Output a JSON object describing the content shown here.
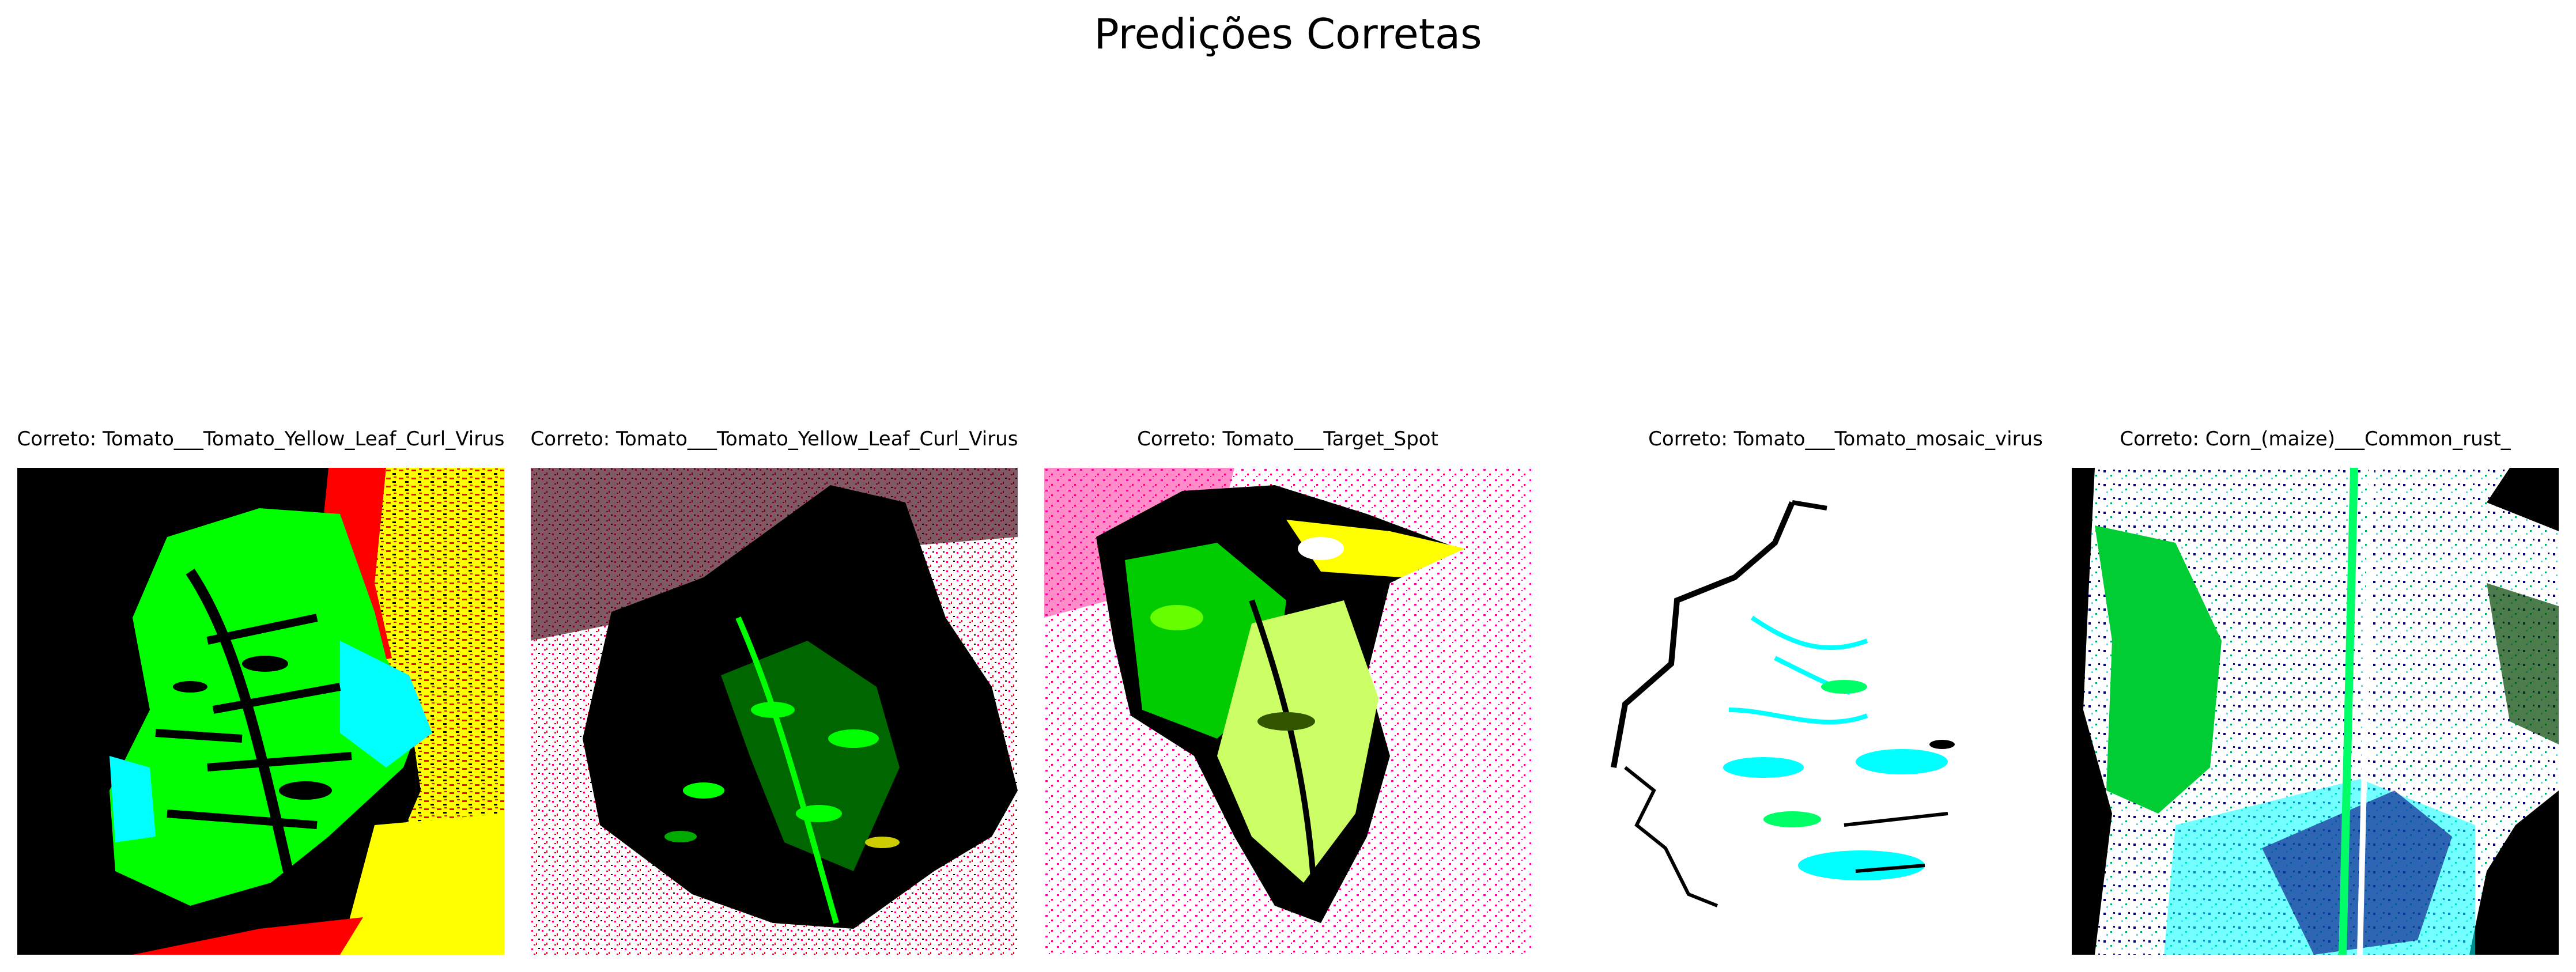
{
  "figure": {
    "title": "Predições Corretas"
  },
  "panels": [
    {
      "caption": "Correto: Tomato___Tomato_Yellow_Leaf_Curl_Virus",
      "visual": "leaf-green-on-black-with-yellow-red-right"
    },
    {
      "caption": "Correto: Tomato___Tomato_Yellow_Leaf_Curl_Virus",
      "visual": "dark-leaf-with-green-veins-magenta-noise-top"
    },
    {
      "caption": "Correto: Tomato___Target_Spot",
      "visual": "yellow-green-leaf-on-white-with-magenta-noise"
    },
    {
      "caption": "Correto: Tomato___Tomato_mosaic_virus",
      "visual": "white-leaf-outline-with-cyan-patches"
    },
    {
      "caption": "Correto: Corn_(maize)___Common_rust_",
      "visual": "white-leaf-with-blue-green-speckles-on-black"
    }
  ],
  "colors": {
    "leaf_green": "#00ff00",
    "cyan": "#00ffff",
    "yellow": "#ffff00",
    "red": "#ff0000",
    "magenta": "#ff00aa",
    "black": "#000000",
    "white": "#ffffff",
    "navy": "#000080"
  }
}
